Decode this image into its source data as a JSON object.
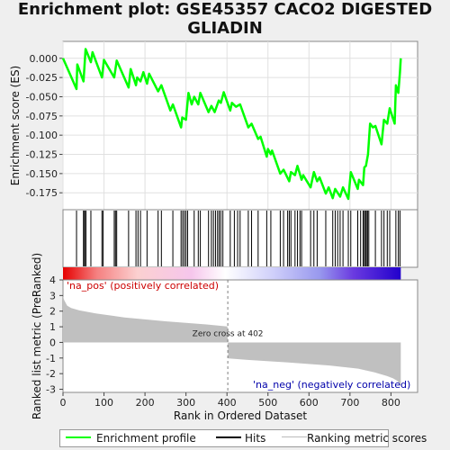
{
  "title_line1": "Enrichment plot: GSE45357 CACO2 DIGESTED",
  "title_line2": "GLIADIN",
  "colors": {
    "profile": "#00ff00",
    "hits": "#000000",
    "ranking": "#c0c0c0",
    "zero_line": "#808080",
    "pos_label": "#cc0000",
    "neg_label": "#0000aa"
  },
  "chart_data": [
    {
      "type": "line",
      "name": "enrichment-score",
      "ylabel": "Enrichment score (ES)",
      "ylim": [
        -0.197,
        0.022
      ],
      "xlim": [
        0,
        865
      ],
      "yticks": [
        0.0,
        -0.025,
        -0.05,
        -0.075,
        -0.1,
        -0.125,
        -0.15,
        -0.175
      ],
      "ytick_labels": [
        "0.000",
        "-0.025",
        "-0.050",
        "-0.075",
        "-0.100",
        "-0.125",
        "-0.150",
        "-0.175"
      ],
      "grid": true,
      "x": [
        0,
        33,
        35,
        50,
        55,
        68,
        72,
        95,
        100,
        125,
        131,
        160,
        165,
        178,
        181,
        189,
        196,
        205,
        210,
        232,
        240,
        262,
        268,
        288,
        291,
        300,
        306,
        314,
        320,
        330,
        335,
        355,
        362,
        370,
        380,
        385,
        392,
        408,
        412,
        422,
        432,
        452,
        460,
        476,
        482,
        497,
        500,
        507,
        510,
        530,
        538,
        552,
        556,
        566,
        572,
        582,
        586,
        604,
        612,
        620,
        626,
        641,
        648,
        658,
        664,
        676,
        683,
        696,
        702,
        719,
        722,
        732,
        735,
        739,
        744,
        749,
        756,
        762,
        777,
        783,
        791,
        797,
        809,
        812,
        818,
        822,
        824
      ],
      "y": [
        0.0,
        -0.04,
        -0.008,
        -0.03,
        0.012,
        -0.005,
        0.008,
        -0.025,
        -0.002,
        -0.025,
        -0.003,
        -0.038,
        -0.014,
        -0.035,
        -0.025,
        -0.03,
        -0.018,
        -0.033,
        -0.02,
        -0.043,
        -0.035,
        -0.068,
        -0.06,
        -0.09,
        -0.077,
        -0.08,
        -0.045,
        -0.06,
        -0.05,
        -0.06,
        -0.045,
        -0.07,
        -0.062,
        -0.07,
        -0.055,
        -0.058,
        -0.044,
        -0.068,
        -0.058,
        -0.063,
        -0.06,
        -0.09,
        -0.085,
        -0.105,
        -0.102,
        -0.128,
        -0.118,
        -0.125,
        -0.12,
        -0.15,
        -0.145,
        -0.16,
        -0.148,
        -0.152,
        -0.14,
        -0.158,
        -0.152,
        -0.168,
        -0.148,
        -0.16,
        -0.155,
        -0.176,
        -0.168,
        -0.182,
        -0.17,
        -0.18,
        -0.168,
        -0.183,
        -0.148,
        -0.17,
        -0.158,
        -0.165,
        -0.142,
        -0.14,
        -0.125,
        -0.085,
        -0.09,
        -0.088,
        -0.112,
        -0.08,
        -0.085,
        -0.065,
        -0.085,
        -0.035,
        -0.045,
        -0.018,
        0.0
      ]
    },
    {
      "type": "bar",
      "name": "hits",
      "x": [
        33,
        50,
        52,
        55,
        56,
        68,
        95,
        98,
        125,
        128,
        131,
        160,
        178,
        183,
        189,
        205,
        232,
        240,
        268,
        288,
        292,
        296,
        300,
        304,
        320,
        330,
        335,
        355,
        362,
        367,
        372,
        377,
        381,
        385,
        390,
        408,
        418,
        426,
        432,
        452,
        460,
        476,
        497,
        507,
        530,
        538,
        548,
        552,
        556,
        566,
        572,
        578,
        582,
        604,
        612,
        620,
        641,
        658,
        664,
        670,
        676,
        683,
        696,
        702,
        719,
        726,
        732,
        735,
        738,
        740,
        743,
        746,
        762,
        777,
        783,
        791,
        797,
        812,
        818,
        822
      ]
    },
    {
      "type": "area",
      "name": "ranking-metric",
      "xlabel": "Rank in Ordered Dataset",
      "ylabel": "Ranked list metric (PreRanked)",
      "ylim": [
        -3.2,
        4.0
      ],
      "xticks": [
        0,
        100,
        200,
        300,
        400,
        500,
        600,
        700,
        800
      ],
      "yticks": [
        4,
        3,
        2,
        1,
        0,
        -1,
        -2,
        -3
      ],
      "x": [
        0,
        3,
        10,
        20,
        40,
        80,
        150,
        250,
        350,
        401,
        402,
        403,
        450,
        550,
        650,
        720,
        760,
        790,
        805,
        815,
        820,
        824
      ],
      "y": [
        2.95,
        2.7,
        2.35,
        2.2,
        2.05,
        1.85,
        1.6,
        1.35,
        1.15,
        1.02,
        0.0,
        -1.02,
        -1.12,
        -1.28,
        -1.48,
        -1.68,
        -1.92,
        -2.15,
        -2.3,
        -2.45,
        -2.6,
        -2.8
      ],
      "zero_cross_label": "Zero cross at 402",
      "pos_label": "'na_pos' (positively correlated)",
      "neg_label": "'na_neg' (negatively correlated)"
    }
  ],
  "legend": {
    "items": [
      "Enrichment profile",
      "Hits",
      "Ranking metric scores"
    ]
  }
}
